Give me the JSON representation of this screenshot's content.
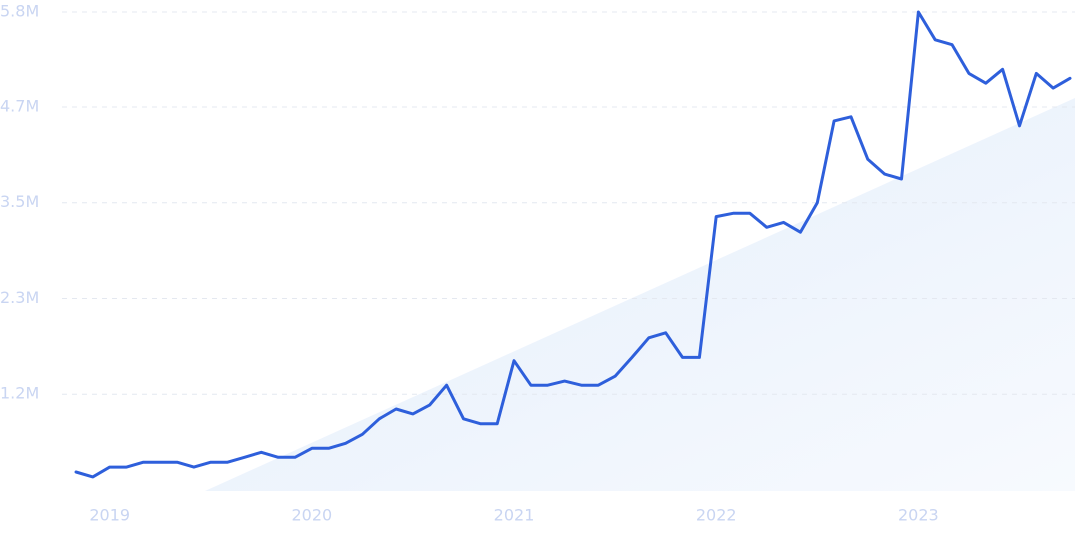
{
  "chart_data": {
    "type": "line",
    "categories": [
      null,
      null,
      "2019",
      null,
      null,
      null,
      null,
      null,
      null,
      null,
      null,
      null,
      null,
      null,
      "2020",
      null,
      null,
      null,
      null,
      null,
      null,
      null,
      null,
      null,
      null,
      null,
      "2021",
      null,
      null,
      null,
      null,
      null,
      null,
      null,
      null,
      null,
      null,
      null,
      "2022",
      null,
      null,
      null,
      null,
      null,
      null,
      null,
      null,
      null,
      null,
      null,
      "2023",
      null,
      null,
      null,
      null,
      null,
      null,
      null,
      null,
      null
    ],
    "series": [
      {
        "color": "#2e5fdb",
        "values": [
          220000,
          160000,
          280000,
          280000,
          340000,
          340000,
          340000,
          280000,
          340000,
          340000,
          400000,
          460000,
          400000,
          400000,
          510000,
          510000,
          570000,
          680000,
          870000,
          990000,
          930000,
          1040000,
          1280000,
          870000,
          810000,
          810000,
          1580000,
          1280000,
          1280000,
          1330000,
          1280000,
          1280000,
          1390000,
          1620000,
          1860000,
          1920000,
          1620000,
          1620000,
          3340000,
          3380000,
          3380000,
          3210000,
          3270000,
          3150000,
          3510000,
          4510000,
          4560000,
          4040000,
          3860000,
          3800000,
          5840000,
          5500000,
          5440000,
          5090000,
          4970000,
          5140000,
          4450000,
          5090000,
          4910000,
          5030000
        ]
      }
    ],
    "ylim": [
      0,
      5840000
    ],
    "yticks": [
      {
        "value": 1170000,
        "label": "1.2M"
      },
      {
        "value": 2340000,
        "label": "2.3M"
      },
      {
        "value": 3510000,
        "label": "3.5M"
      },
      {
        "value": 4680000,
        "label": "4.7M"
      },
      {
        "value": 5840000,
        "label": "5.8M"
      }
    ],
    "grid": true
  }
}
